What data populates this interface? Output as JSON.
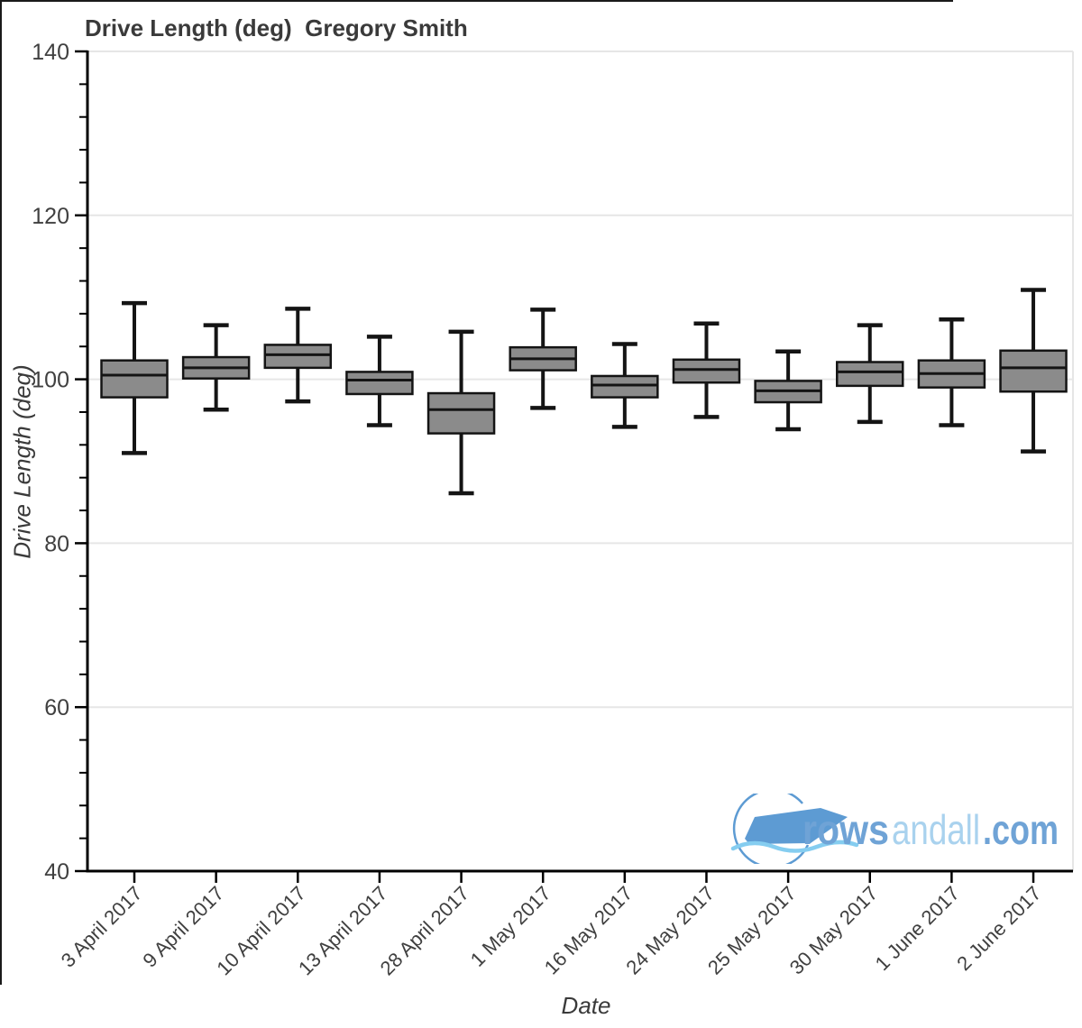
{
  "chart_data": {
    "type": "boxplot",
    "title": "Drive Length (deg)  Gregory Smith",
    "xlabel": "Date",
    "ylabel": "Drive Length (deg)",
    "ylim": [
      40,
      140
    ],
    "y_major_ticks": [
      40,
      60,
      80,
      100,
      120,
      140
    ],
    "y_minor_step": 4,
    "grid": "horizontal-major-light",
    "legend": "none",
    "categories": [
      "3 April 2017",
      "9 April 2017",
      "10 April 2017",
      "13 April 2017",
      "28 April 2017",
      "1 May 2017",
      "16 May 2017",
      "24 May 2017",
      "25 May 2017",
      "30 May 2017",
      "1 June 2017",
      "2 June 2017"
    ],
    "boxes": [
      {
        "label": "3 April 2017",
        "low": 91.0,
        "q1": 97.8,
        "median": 100.5,
        "q3": 102.3,
        "high": 109.3
      },
      {
        "label": "9 April 2017",
        "low": 96.3,
        "q1": 100.1,
        "median": 101.4,
        "q3": 102.7,
        "high": 106.6
      },
      {
        "label": "10 April 2017",
        "low": 97.3,
        "q1": 101.4,
        "median": 103.0,
        "q3": 104.2,
        "high": 108.6
      },
      {
        "label": "13 April 2017",
        "low": 94.4,
        "q1": 98.2,
        "median": 99.9,
        "q3": 100.9,
        "high": 105.2
      },
      {
        "label": "28 April 2017",
        "low": 86.1,
        "q1": 93.4,
        "median": 96.3,
        "q3": 98.3,
        "high": 105.8
      },
      {
        "label": "1 May 2017",
        "low": 96.5,
        "q1": 101.1,
        "median": 102.5,
        "q3": 103.9,
        "high": 108.5
      },
      {
        "label": "16 May 2017",
        "low": 94.2,
        "q1": 97.8,
        "median": 99.3,
        "q3": 100.4,
        "high": 104.3
      },
      {
        "label": "24 May 2017",
        "low": 95.4,
        "q1": 99.6,
        "median": 101.2,
        "q3": 102.4,
        "high": 106.8
      },
      {
        "label": "25 May 2017",
        "low": 93.9,
        "q1": 97.2,
        "median": 98.6,
        "q3": 99.8,
        "high": 103.4
      },
      {
        "label": "30 May 2017",
        "low": 94.8,
        "q1": 99.2,
        "median": 100.9,
        "q3": 102.1,
        "high": 106.6
      },
      {
        "label": "1 June 2017",
        "low": 94.4,
        "q1": 99.0,
        "median": 100.7,
        "q3": 102.3,
        "high": 107.3
      },
      {
        "label": "2 June 2017",
        "low": 91.2,
        "q1": 98.5,
        "median": 101.4,
        "q3": 103.5,
        "high": 110.9
      }
    ],
    "colors": {
      "box_fill": "#8b8b8b",
      "box_stroke": "#141414",
      "axis": "#000000",
      "grid": "#e6e6e6",
      "tick_label": "#404040",
      "title": "#3a3a3a"
    }
  },
  "logo": {
    "rows": "rows",
    "andall": "andall",
    "com": ".com",
    "color_bold": "#6fa3d6",
    "color_light": "#a9d2ee",
    "icon_color": "#5d9bd3",
    "wave_color": "#85cdf0"
  }
}
